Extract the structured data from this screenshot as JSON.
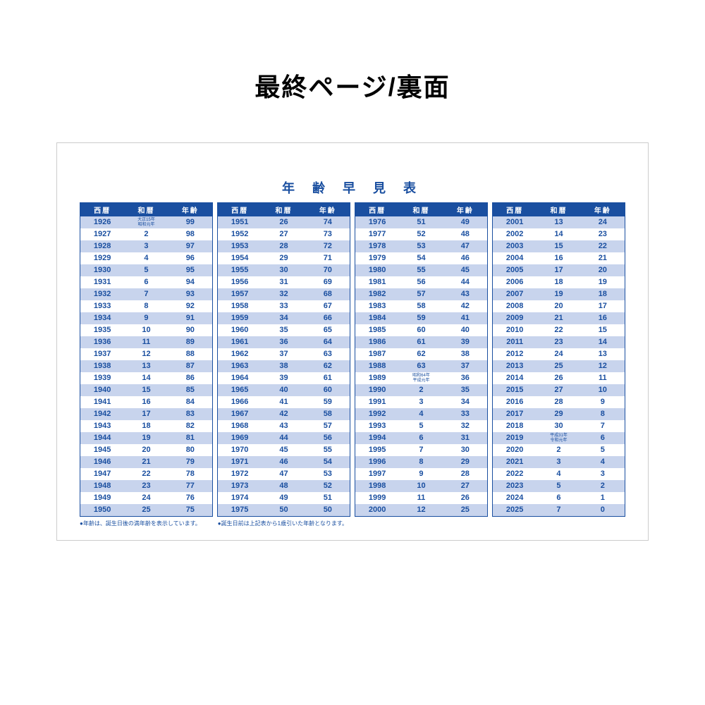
{
  "page_title": "最終ページ/裏面",
  "table_title": "年 齢 早 見 表",
  "colors": {
    "primary": "#1a4fa0",
    "stripe": "#c8d4ed",
    "background": "#ffffff",
    "border": "#cccccc"
  },
  "typography": {
    "page_title_size": 36,
    "table_title_size": 18,
    "header_size": 10,
    "cell_size": 11,
    "special_size": 6,
    "footnote_size": 8
  },
  "headers": [
    "西暦",
    "和暦",
    "年齢"
  ],
  "blocks": [
    {
      "rows": [
        {
          "y": "1926",
          "w": "大正15年\n昭和元年",
          "a": "99",
          "special": true
        },
        {
          "y": "1927",
          "w": "2",
          "a": "98"
        },
        {
          "y": "1928",
          "w": "3",
          "a": "97"
        },
        {
          "y": "1929",
          "w": "4",
          "a": "96"
        },
        {
          "y": "1930",
          "w": "5",
          "a": "95"
        },
        {
          "y": "1931",
          "w": "6",
          "a": "94"
        },
        {
          "y": "1932",
          "w": "7",
          "a": "93"
        },
        {
          "y": "1933",
          "w": "8",
          "a": "92"
        },
        {
          "y": "1934",
          "w": "9",
          "a": "91"
        },
        {
          "y": "1935",
          "w": "10",
          "a": "90"
        },
        {
          "y": "1936",
          "w": "11",
          "a": "89"
        },
        {
          "y": "1937",
          "w": "12",
          "a": "88"
        },
        {
          "y": "1938",
          "w": "13",
          "a": "87"
        },
        {
          "y": "1939",
          "w": "14",
          "a": "86"
        },
        {
          "y": "1940",
          "w": "15",
          "a": "85"
        },
        {
          "y": "1941",
          "w": "16",
          "a": "84"
        },
        {
          "y": "1942",
          "w": "17",
          "a": "83"
        },
        {
          "y": "1943",
          "w": "18",
          "a": "82"
        },
        {
          "y": "1944",
          "w": "19",
          "a": "81"
        },
        {
          "y": "1945",
          "w": "20",
          "a": "80"
        },
        {
          "y": "1946",
          "w": "21",
          "a": "79"
        },
        {
          "y": "1947",
          "w": "22",
          "a": "78"
        },
        {
          "y": "1948",
          "w": "23",
          "a": "77"
        },
        {
          "y": "1949",
          "w": "24",
          "a": "76"
        },
        {
          "y": "1950",
          "w": "25",
          "a": "75"
        }
      ]
    },
    {
      "rows": [
        {
          "y": "1951",
          "w": "26",
          "a": "74"
        },
        {
          "y": "1952",
          "w": "27",
          "a": "73"
        },
        {
          "y": "1953",
          "w": "28",
          "a": "72"
        },
        {
          "y": "1954",
          "w": "29",
          "a": "71"
        },
        {
          "y": "1955",
          "w": "30",
          "a": "70"
        },
        {
          "y": "1956",
          "w": "31",
          "a": "69"
        },
        {
          "y": "1957",
          "w": "32",
          "a": "68"
        },
        {
          "y": "1958",
          "w": "33",
          "a": "67"
        },
        {
          "y": "1959",
          "w": "34",
          "a": "66"
        },
        {
          "y": "1960",
          "w": "35",
          "a": "65"
        },
        {
          "y": "1961",
          "w": "36",
          "a": "64"
        },
        {
          "y": "1962",
          "w": "37",
          "a": "63"
        },
        {
          "y": "1963",
          "w": "38",
          "a": "62"
        },
        {
          "y": "1964",
          "w": "39",
          "a": "61"
        },
        {
          "y": "1965",
          "w": "40",
          "a": "60"
        },
        {
          "y": "1966",
          "w": "41",
          "a": "59"
        },
        {
          "y": "1967",
          "w": "42",
          "a": "58"
        },
        {
          "y": "1968",
          "w": "43",
          "a": "57"
        },
        {
          "y": "1969",
          "w": "44",
          "a": "56"
        },
        {
          "y": "1970",
          "w": "45",
          "a": "55"
        },
        {
          "y": "1971",
          "w": "46",
          "a": "54"
        },
        {
          "y": "1972",
          "w": "47",
          "a": "53"
        },
        {
          "y": "1973",
          "w": "48",
          "a": "52"
        },
        {
          "y": "1974",
          "w": "49",
          "a": "51"
        },
        {
          "y": "1975",
          "w": "50",
          "a": "50"
        }
      ]
    },
    {
      "rows": [
        {
          "y": "1976",
          "w": "51",
          "a": "49"
        },
        {
          "y": "1977",
          "w": "52",
          "a": "48"
        },
        {
          "y": "1978",
          "w": "53",
          "a": "47"
        },
        {
          "y": "1979",
          "w": "54",
          "a": "46"
        },
        {
          "y": "1980",
          "w": "55",
          "a": "45"
        },
        {
          "y": "1981",
          "w": "56",
          "a": "44"
        },
        {
          "y": "1982",
          "w": "57",
          "a": "43"
        },
        {
          "y": "1983",
          "w": "58",
          "a": "42"
        },
        {
          "y": "1984",
          "w": "59",
          "a": "41"
        },
        {
          "y": "1985",
          "w": "60",
          "a": "40"
        },
        {
          "y": "1986",
          "w": "61",
          "a": "39"
        },
        {
          "y": "1987",
          "w": "62",
          "a": "38"
        },
        {
          "y": "1988",
          "w": "63",
          "a": "37"
        },
        {
          "y": "1989",
          "w": "昭和64年\n平成元年",
          "a": "36",
          "special": true
        },
        {
          "y": "1990",
          "w": "2",
          "a": "35"
        },
        {
          "y": "1991",
          "w": "3",
          "a": "34"
        },
        {
          "y": "1992",
          "w": "4",
          "a": "33"
        },
        {
          "y": "1993",
          "w": "5",
          "a": "32"
        },
        {
          "y": "1994",
          "w": "6",
          "a": "31"
        },
        {
          "y": "1995",
          "w": "7",
          "a": "30"
        },
        {
          "y": "1996",
          "w": "8",
          "a": "29"
        },
        {
          "y": "1997",
          "w": "9",
          "a": "28"
        },
        {
          "y": "1998",
          "w": "10",
          "a": "27"
        },
        {
          "y": "1999",
          "w": "11",
          "a": "26"
        },
        {
          "y": "2000",
          "w": "12",
          "a": "25"
        }
      ]
    },
    {
      "rows": [
        {
          "y": "2001",
          "w": "13",
          "a": "24"
        },
        {
          "y": "2002",
          "w": "14",
          "a": "23"
        },
        {
          "y": "2003",
          "w": "15",
          "a": "22"
        },
        {
          "y": "2004",
          "w": "16",
          "a": "21"
        },
        {
          "y": "2005",
          "w": "17",
          "a": "20"
        },
        {
          "y": "2006",
          "w": "18",
          "a": "19"
        },
        {
          "y": "2007",
          "w": "19",
          "a": "18"
        },
        {
          "y": "2008",
          "w": "20",
          "a": "17"
        },
        {
          "y": "2009",
          "w": "21",
          "a": "16"
        },
        {
          "y": "2010",
          "w": "22",
          "a": "15"
        },
        {
          "y": "2011",
          "w": "23",
          "a": "14"
        },
        {
          "y": "2012",
          "w": "24",
          "a": "13"
        },
        {
          "y": "2013",
          "w": "25",
          "a": "12"
        },
        {
          "y": "2014",
          "w": "26",
          "a": "11"
        },
        {
          "y": "2015",
          "w": "27",
          "a": "10"
        },
        {
          "y": "2016",
          "w": "28",
          "a": "9"
        },
        {
          "y": "2017",
          "w": "29",
          "a": "8"
        },
        {
          "y": "2018",
          "w": "30",
          "a": "7"
        },
        {
          "y": "2019",
          "w": "平成31年\n令和元年",
          "a": "6",
          "special": true
        },
        {
          "y": "2020",
          "w": "2",
          "a": "5"
        },
        {
          "y": "2021",
          "w": "3",
          "a": "4"
        },
        {
          "y": "2022",
          "w": "4",
          "a": "3"
        },
        {
          "y": "2023",
          "w": "5",
          "a": "2"
        },
        {
          "y": "2024",
          "w": "6",
          "a": "1"
        },
        {
          "y": "2025",
          "w": "7",
          "a": "0"
        }
      ]
    }
  ],
  "footnotes": [
    "●年齢は、誕生日後の満年齢を表示しています。",
    "●誕生日前は上記表から1歳引いた年齢となります。"
  ]
}
